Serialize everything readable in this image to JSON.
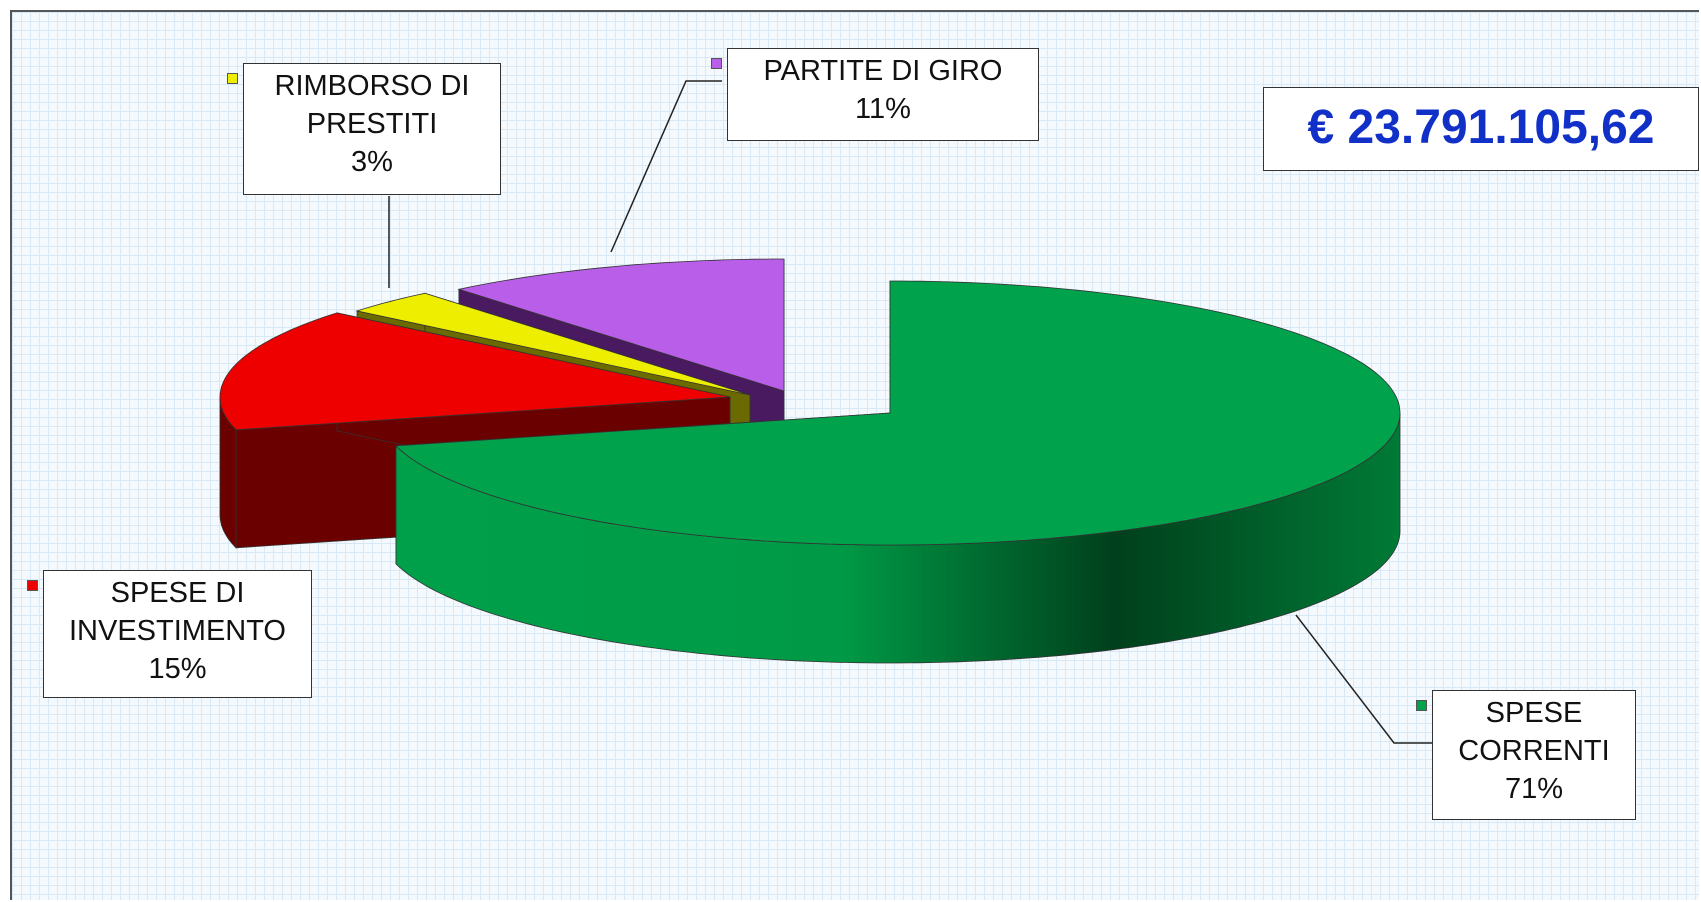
{
  "chart_data": {
    "type": "pie3d",
    "categories": [
      "SPESE CORRENTI",
      "SPESE DI INVESTIMENTO",
      "RIMBORSO DI PRESTITI",
      "PARTITE DI GIRO"
    ],
    "values": [
      71,
      15,
      3,
      11
    ],
    "value_labels": [
      "71%",
      "15%",
      "3%",
      "11%"
    ],
    "colors": [
      "#00a24c",
      "#ee0000",
      "#eeee00",
      "#b95ee8"
    ],
    "annotation": "€ 23.791.105,62"
  }
}
